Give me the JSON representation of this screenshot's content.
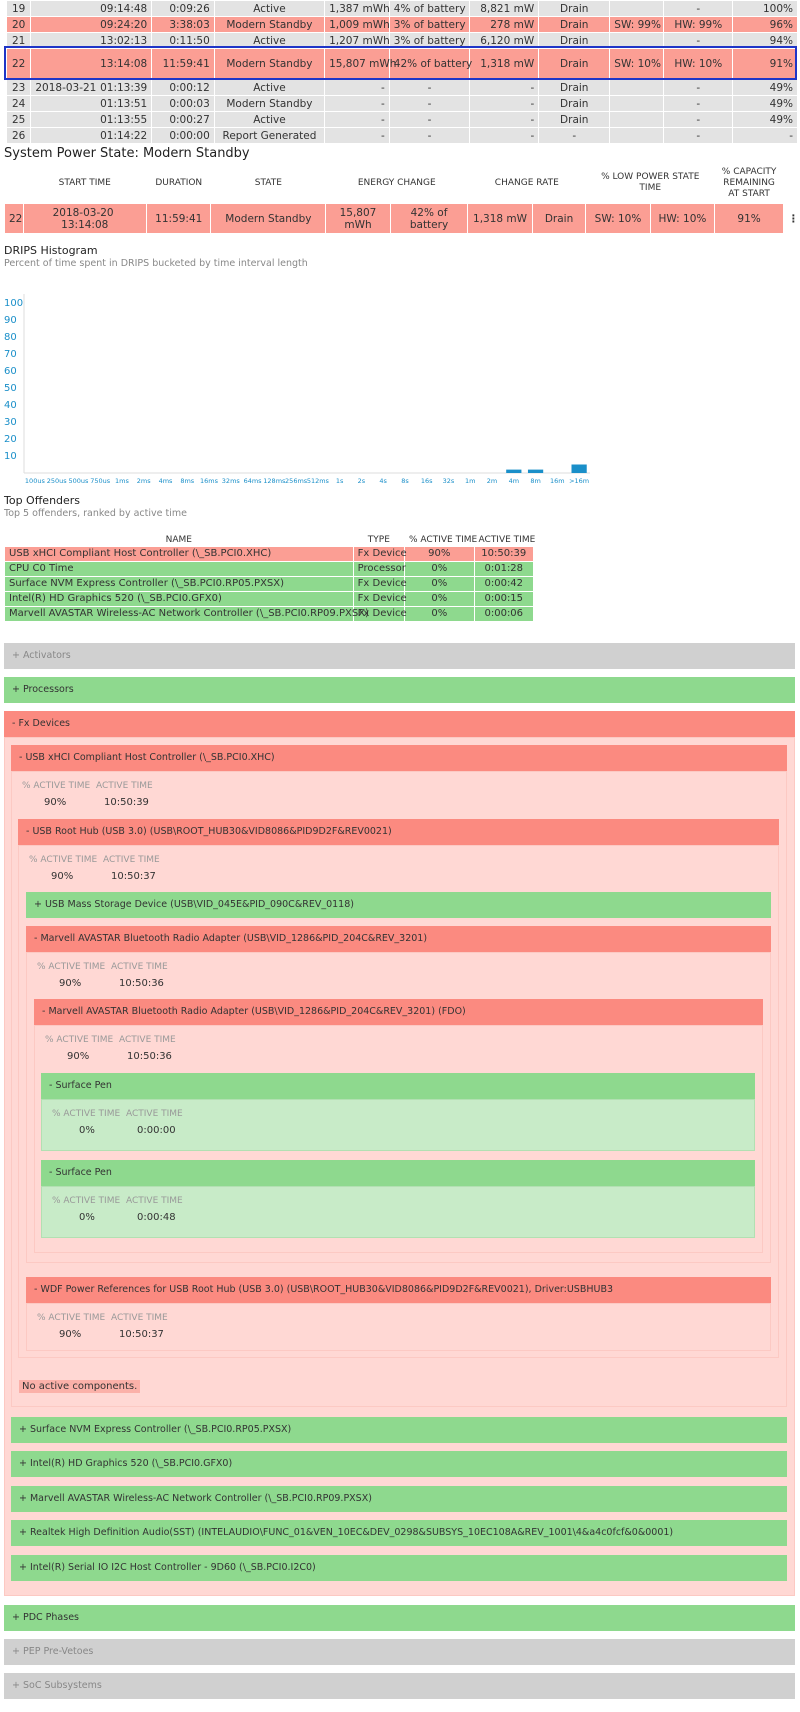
{
  "sessions": [
    {
      "n": "19",
      "date": "",
      "time": "09:14:48",
      "dur": "0:09:26",
      "state": "Active",
      "energy": "1,387 mWh",
      "pct": "4% of battery",
      "rate": "8,821 mW",
      "dir": "Drain",
      "sw": "",
      "hw": "-",
      "cap": "100%",
      "style": "gray"
    },
    {
      "n": "20",
      "date": "",
      "time": "09:24:20",
      "dur": "3:38:03",
      "state": "Modern Standby",
      "energy": "1,009 mWh",
      "pct": "3% of battery",
      "rate": "278 mW",
      "dir": "Drain",
      "sw": "SW: 99%",
      "hw": "HW: 99%",
      "cap": "96%",
      "style": "red"
    },
    {
      "n": "21",
      "date": "",
      "time": "13:02:13",
      "dur": "0:11:50",
      "state": "Active",
      "energy": "1,207 mWh",
      "pct": "3% of battery",
      "rate": "6,120 mW",
      "dir": "Drain",
      "sw": "",
      "hw": "-",
      "cap": "94%",
      "style": "gray"
    },
    {
      "n": "22",
      "date": "",
      "time": "13:14:08",
      "dur": "11:59:41",
      "state": "Modern Standby",
      "energy": "15,807 mWh",
      "pct": "42% of battery",
      "rate": "1,318 mW",
      "dir": "Drain",
      "sw": "SW: 10%",
      "hw": "HW: 10%",
      "cap": "91%",
      "style": "sel"
    },
    {
      "n": "23",
      "date": "2018-03-21",
      "time": "01:13:39",
      "dur": "0:00:12",
      "state": "Active",
      "energy": "-",
      "pct": "-",
      "rate": "-",
      "dir": "Drain",
      "sw": "",
      "hw": "-",
      "cap": "49%",
      "style": "gray"
    },
    {
      "n": "24",
      "date": "",
      "time": "01:13:51",
      "dur": "0:00:03",
      "state": "Modern Standby",
      "energy": "-",
      "pct": "-",
      "rate": "-",
      "dir": "Drain",
      "sw": "",
      "hw": "-",
      "cap": "49%",
      "style": "gray"
    },
    {
      "n": "25",
      "date": "",
      "time": "01:13:55",
      "dur": "0:00:27",
      "state": "Active",
      "energy": "-",
      "pct": "-",
      "rate": "-",
      "dir": "Drain",
      "sw": "",
      "hw": "-",
      "cap": "49%",
      "style": "gray"
    },
    {
      "n": "26",
      "date": "",
      "time": "01:14:22",
      "dur": "0:00:00",
      "state": "Report Generated",
      "energy": "-",
      "pct": "-",
      "rate": "-",
      "dir": "-",
      "sw": "",
      "hw": "-",
      "cap": "-",
      "style": "gray"
    }
  ],
  "sps": {
    "title": "System Power State: Modern Standby",
    "headers": {
      "start": "START TIME",
      "duration": "DURATION",
      "state": "STATE",
      "energy": "ENERGY CHANGE",
      "rate": "CHANGE RATE",
      "lowpower": "% LOW POWER STATE TIME",
      "capacity": "% CAPACITY REMAINING AT START"
    },
    "row": {
      "n": "22",
      "date": "2018-03-20",
      "time": "13:14:08",
      "dur": "11:59:41",
      "state": "Modern Standby",
      "energy": "15,807 mWh",
      "pct": "42% of battery",
      "rate": "1,318 mW",
      "dir": "Drain",
      "sw": "SW: 10%",
      "hw": "HW: 10%",
      "cap": "91%"
    },
    "more": "⋮"
  },
  "histogram": {
    "title": "DRIPS Histogram",
    "subtitle": "Percent of time spent in DRIPS bucketed by time interval length"
  },
  "chart_data": {
    "type": "bar",
    "categories": [
      "100us",
      "250us",
      "500us",
      "750us",
      "1ms",
      "2ms",
      "4ms",
      "8ms",
      "16ms",
      "32ms",
      "64ms",
      "128ms",
      "256ms",
      "512ms",
      "1s",
      "2s",
      "4s",
      "8s",
      "16s",
      "32s",
      "1m",
      "2m",
      "4m",
      "8m",
      "16m",
      ">16m"
    ],
    "values": [
      0,
      0,
      0,
      0,
      0,
      0,
      0,
      0,
      0,
      0,
      0,
      0,
      0,
      0,
      0,
      0,
      0,
      0,
      0,
      0,
      0,
      0,
      2,
      2,
      0,
      5
    ],
    "yticks": [
      10,
      20,
      30,
      40,
      50,
      60,
      70,
      80,
      90,
      100
    ],
    "ylim": [
      0,
      100
    ],
    "color": "#1a8fc9",
    "title": "",
    "xlabel": "",
    "ylabel": ""
  },
  "offenders": {
    "title": "Top Offenders",
    "subtitle": "Top 5 offenders, ranked by active time",
    "headers": {
      "name": "NAME",
      "type": "TYPE",
      "pct": "% ACTIVE TIME",
      "time": "ACTIVE TIME"
    },
    "rows": [
      {
        "name": "USB xHCI Compliant Host Controller (\\_SB.PCI0.XHC)",
        "type": "Fx Device",
        "pct": "90%",
        "time": "10:50:39"
      },
      {
        "name": "CPU C0 Time",
        "type": "Processor",
        "pct": "0%",
        "time": "0:01:28"
      },
      {
        "name": "Surface NVM Express Controller (\\_SB.PCI0.RP05.PXSX)",
        "type": "Fx Device",
        "pct": "0%",
        "time": "0:00:42"
      },
      {
        "name": "Intel(R) HD Graphics 520 (\\_SB.PCI0.GFX0)",
        "type": "Fx Device",
        "pct": "0%",
        "time": "0:00:15"
      },
      {
        "name": "Marvell AVASTAR Wireless-AC Network Controller (\\_SB.PCI0.RP09.PXSX)",
        "type": "Fx Device",
        "pct": "0%",
        "time": "0:00:06"
      }
    ]
  },
  "labels": {
    "pct_active": "% ACTIVE TIME",
    "active": "ACTIVE TIME"
  },
  "tree": {
    "activators": "+  Activators",
    "processors": "+  Processors",
    "fx": "-  Fx Devices",
    "usb_xhci": "-  USB xHCI Compliant Host Controller (\\_SB.PCI0.XHC)",
    "usb_xhci_pct": "90%",
    "usb_xhci_time": "10:50:39",
    "root_hub": "-  USB Root Hub (USB 3.0) (USB\\ROOT_HUB30&VID8086&PID9D2F&REV0021)",
    "root_hub_pct": "90%",
    "root_hub_time": "10:50:37",
    "mass_storage": "+  USB Mass Storage Device (USB\\VID_045E&PID_090C&REV_0118)",
    "bt": "-  Marvell AVASTAR Bluetooth Radio Adapter (USB\\VID_1286&PID_204C&REV_3201)",
    "bt_pct": "90%",
    "bt_time": "10:50:36",
    "bt_fdo": "-  Marvell AVASTAR Bluetooth Radio Adapter (USB\\VID_1286&PID_204C&REV_3201) (FDO)",
    "bt_fdo_pct": "90%",
    "bt_fdo_time": "10:50:36",
    "pen1": "-  Surface Pen",
    "pen1_pct": "0%",
    "pen1_time": "0:00:00",
    "pen2": "-  Surface Pen",
    "pen2_pct": "0%",
    "pen2_time": "0:00:48",
    "wdf": "-  WDF Power References for USB Root Hub (USB 3.0) (USB\\ROOT_HUB30&VID8086&PID9D2F&REV0021), Driver:USBHUB3",
    "wdf_pct": "90%",
    "wdf_time": "10:50:37",
    "no_active": "No active components.",
    "nvme": "+  Surface NVM Express Controller (\\_SB.PCI0.RP05.PXSX)",
    "gfx": "+  Intel(R) HD Graphics 520 (\\_SB.PCI0.GFX0)",
    "wifi": "+  Marvell AVASTAR Wireless-AC Network Controller (\\_SB.PCI0.RP09.PXSX)",
    "audio": "+  Realtek High Definition Audio(SST) (INTELAUDIO\\FUNC_01&VEN_10EC&DEV_0298&SUBSYS_10EC108A&REV_1001\\4&a4c0fcf&0&0001)",
    "i2c": "+  Intel(R) Serial IO I2C Host Controller - 9D60 (\\_SB.PCI0.I2C0)",
    "pdc": "+  PDC Phases",
    "pep": "+  PEP Pre-Vetoes",
    "soc": "+  SoC Subsystems"
  }
}
